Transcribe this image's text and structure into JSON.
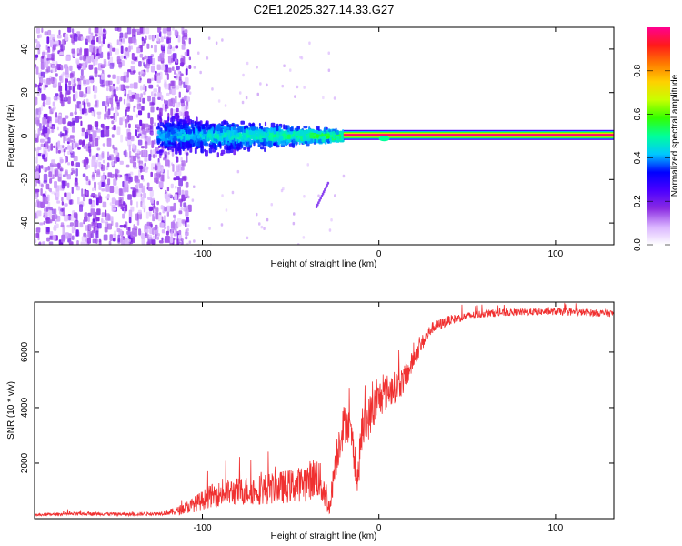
{
  "title": "C2E1.2025.327.14.33.G27",
  "chart_data": [
    {
      "type": "heatmap",
      "xlabel": "Height of straight line (km)",
      "ylabel": "Frequency (Hz)",
      "xlim": [
        -195,
        133
      ],
      "ylim": [
        -50,
        50
      ],
      "xticks": [
        -100,
        0,
        100
      ],
      "yticks": [
        -40,
        -20,
        0,
        20,
        40
      ],
      "xtick_labels": [
        "-100",
        "0",
        "100"
      ],
      "ytick_labels": [
        "-40",
        "-20",
        "0",
        "20",
        "40"
      ],
      "grid": false,
      "description_regions": [
        {
          "x_range": [
            -195,
            -107
          ],
          "freq_range": [
            -50,
            50
          ],
          "amplitude": [
            0.05,
            0.2
          ]
        },
        {
          "x_range": [
            -125,
            -20
          ],
          "freq_range": [
            -12,
            12
          ],
          "amplitude": [
            0.1,
            0.5
          ]
        },
        {
          "x_range": [
            -20,
            133
          ],
          "freq_range": [
            0,
            1
          ],
          "amplitude": [
            0.98,
            0.98
          ]
        }
      ],
      "colorbar": {
        "label": "Normalized spectral amplitude",
        "range": [
          0,
          1
        ],
        "ticks": [
          0.0,
          0.2,
          0.4,
          0.6,
          0.8
        ],
        "tick_labels": [
          "0.0",
          "0.2",
          "0.4",
          "0.6",
          "0.8"
        ],
        "colors": [
          "#ffffff",
          "#d9b3ff",
          "#8a2be2",
          "#4b00ff",
          "#0000ff",
          "#00c8ff",
          "#00ff9a",
          "#33ff00",
          "#c8ff00",
          "#ffd000",
          "#ff7a00",
          "#ff1a1a",
          "#ff0090"
        ]
      }
    },
    {
      "type": "line",
      "xlabel": "Height of straight line (km)",
      "ylabel": "SNR (10 * v/v)",
      "xlim": [
        -195,
        133
      ],
      "ylim": [
        0,
        7800
      ],
      "xticks": [
        -100,
        0,
        100
      ],
      "yticks": [
        2000,
        4000,
        6000
      ],
      "xtick_labels": [
        "-100",
        "0",
        "100"
      ],
      "ytick_labels": [
        "2000",
        "4000",
        "6000"
      ],
      "grid": false,
      "series": [
        {
          "name": "SNR",
          "color": "#f03030",
          "x": [
            -195,
            -180,
            -160,
            -140,
            -125,
            -115,
            -105,
            -95,
            -85,
            -75,
            -65,
            -55,
            -45,
            -40,
            -35,
            -30,
            -28,
            -25,
            -22,
            -20,
            -18,
            -15,
            -12,
            -10,
            -5,
            0,
            5,
            10,
            15,
            20,
            25,
            30,
            40,
            50,
            60,
            80,
            100,
            120,
            133
          ],
          "y": [
            120,
            150,
            160,
            140,
            170,
            220,
            420,
            700,
            800,
            850,
            900,
            950,
            1050,
            1150,
            1300,
            700,
            250,
            1700,
            2700,
            3100,
            3300,
            2600,
            1100,
            2800,
            3500,
            4100,
            4400,
            4600,
            4900,
            5700,
            6300,
            6800,
            7100,
            7250,
            7350,
            7400,
            7420,
            7380,
            7350
          ],
          "noise_amplitude": [
            60,
            80,
            90,
            80,
            90,
            200,
            400,
            600,
            700,
            750,
            800,
            850,
            900,
            1000,
            1100,
            900,
            300,
            1000,
            1100,
            1100,
            1000,
            900,
            900,
            1100,
            1100,
            1000,
            900,
            800,
            700,
            500,
            400,
            300,
            250,
            200,
            200,
            180,
            180,
            180,
            180
          ]
        }
      ]
    }
  ]
}
